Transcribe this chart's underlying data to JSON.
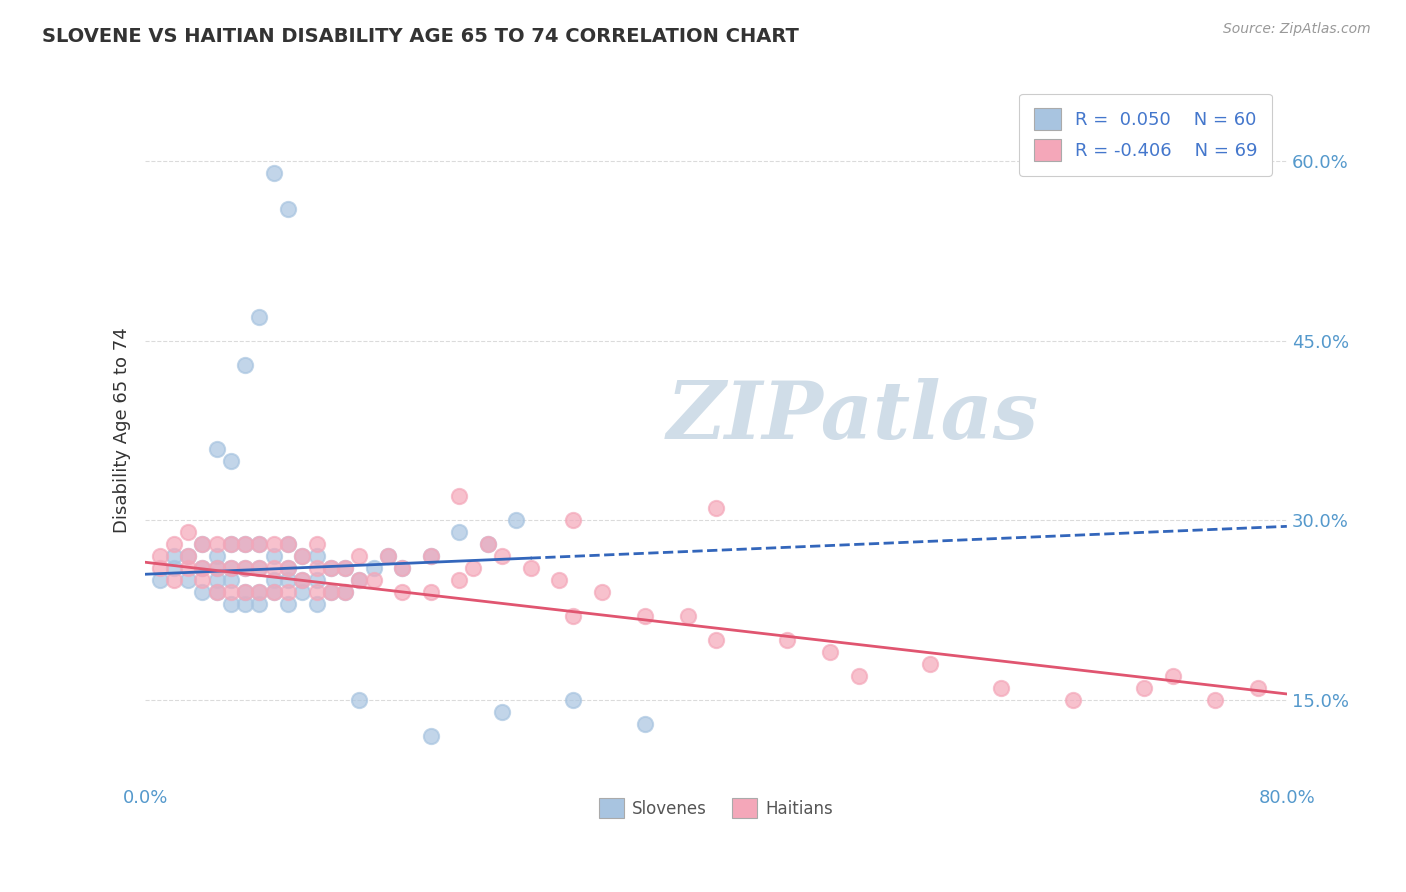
{
  "title": "SLOVENE VS HAITIAN DISABILITY AGE 65 TO 74 CORRELATION CHART",
  "source_text": "Source: ZipAtlas.com",
  "ylabel": "Disability Age 65 to 74",
  "xlim": [
    0.0,
    0.8
  ],
  "ylim": [
    0.08,
    0.67
  ],
  "ytick_positions": [
    0.15,
    0.3,
    0.45,
    0.6
  ],
  "ytick_labels": [
    "15.0%",
    "30.0%",
    "45.0%",
    "60.0%"
  ],
  "slovene_R": 0.05,
  "slovene_N": 60,
  "haitian_R": -0.406,
  "haitian_N": 69,
  "slovene_color": "#a8c4e0",
  "haitian_color": "#f4a7b9",
  "slovene_line_color": "#3366bb",
  "haitian_line_color": "#e05570",
  "watermark": "ZIPatlas",
  "watermark_color": "#d0dde8",
  "background_color": "#ffffff",
  "grid_color": "#d8d8d8",
  "legend_R_color": "#4477cc",
  "tick_color": "#5599cc",
  "slovene_x": [
    0.01,
    0.02,
    0.02,
    0.03,
    0.03,
    0.04,
    0.04,
    0.04,
    0.05,
    0.05,
    0.05,
    0.05,
    0.06,
    0.06,
    0.06,
    0.06,
    0.07,
    0.07,
    0.07,
    0.07,
    0.08,
    0.08,
    0.08,
    0.08,
    0.09,
    0.09,
    0.09,
    0.1,
    0.1,
    0.1,
    0.1,
    0.11,
    0.11,
    0.11,
    0.12,
    0.12,
    0.12,
    0.13,
    0.13,
    0.14,
    0.14,
    0.15,
    0.16,
    0.17,
    0.18,
    0.2,
    0.22,
    0.24,
    0.26,
    0.1,
    0.09,
    0.08,
    0.07,
    0.06,
    0.05,
    0.15,
    0.2,
    0.25,
    0.3,
    0.35
  ],
  "slovene_y": [
    0.25,
    0.26,
    0.27,
    0.25,
    0.27,
    0.24,
    0.26,
    0.28,
    0.24,
    0.25,
    0.26,
    0.27,
    0.23,
    0.25,
    0.26,
    0.28,
    0.23,
    0.24,
    0.26,
    0.28,
    0.23,
    0.24,
    0.26,
    0.28,
    0.24,
    0.25,
    0.27,
    0.23,
    0.25,
    0.26,
    0.28,
    0.24,
    0.25,
    0.27,
    0.23,
    0.25,
    0.27,
    0.24,
    0.26,
    0.24,
    0.26,
    0.25,
    0.26,
    0.27,
    0.26,
    0.27,
    0.29,
    0.28,
    0.3,
    0.56,
    0.59,
    0.47,
    0.43,
    0.35,
    0.36,
    0.15,
    0.12,
    0.14,
    0.15,
    0.13
  ],
  "haitian_x": [
    0.01,
    0.01,
    0.02,
    0.02,
    0.03,
    0.03,
    0.03,
    0.04,
    0.04,
    0.04,
    0.05,
    0.05,
    0.05,
    0.06,
    0.06,
    0.06,
    0.07,
    0.07,
    0.07,
    0.08,
    0.08,
    0.08,
    0.09,
    0.09,
    0.09,
    0.1,
    0.1,
    0.1,
    0.11,
    0.11,
    0.12,
    0.12,
    0.12,
    0.13,
    0.13,
    0.14,
    0.14,
    0.15,
    0.15,
    0.16,
    0.17,
    0.18,
    0.18,
    0.2,
    0.2,
    0.22,
    0.23,
    0.24,
    0.25,
    0.27,
    0.29,
    0.3,
    0.32,
    0.35,
    0.38,
    0.4,
    0.45,
    0.48,
    0.5,
    0.55,
    0.6,
    0.65,
    0.7,
    0.72,
    0.75,
    0.78,
    0.3,
    0.22,
    0.4
  ],
  "haitian_y": [
    0.26,
    0.27,
    0.25,
    0.28,
    0.26,
    0.27,
    0.29,
    0.25,
    0.26,
    0.28,
    0.24,
    0.26,
    0.28,
    0.24,
    0.26,
    0.28,
    0.24,
    0.26,
    0.28,
    0.24,
    0.26,
    0.28,
    0.24,
    0.26,
    0.28,
    0.24,
    0.26,
    0.28,
    0.25,
    0.27,
    0.24,
    0.26,
    0.28,
    0.24,
    0.26,
    0.24,
    0.26,
    0.25,
    0.27,
    0.25,
    0.27,
    0.24,
    0.26,
    0.24,
    0.27,
    0.25,
    0.26,
    0.28,
    0.27,
    0.26,
    0.25,
    0.22,
    0.24,
    0.22,
    0.22,
    0.2,
    0.2,
    0.19,
    0.17,
    0.18,
    0.16,
    0.15,
    0.16,
    0.17,
    0.15,
    0.16,
    0.3,
    0.32,
    0.31
  ]
}
